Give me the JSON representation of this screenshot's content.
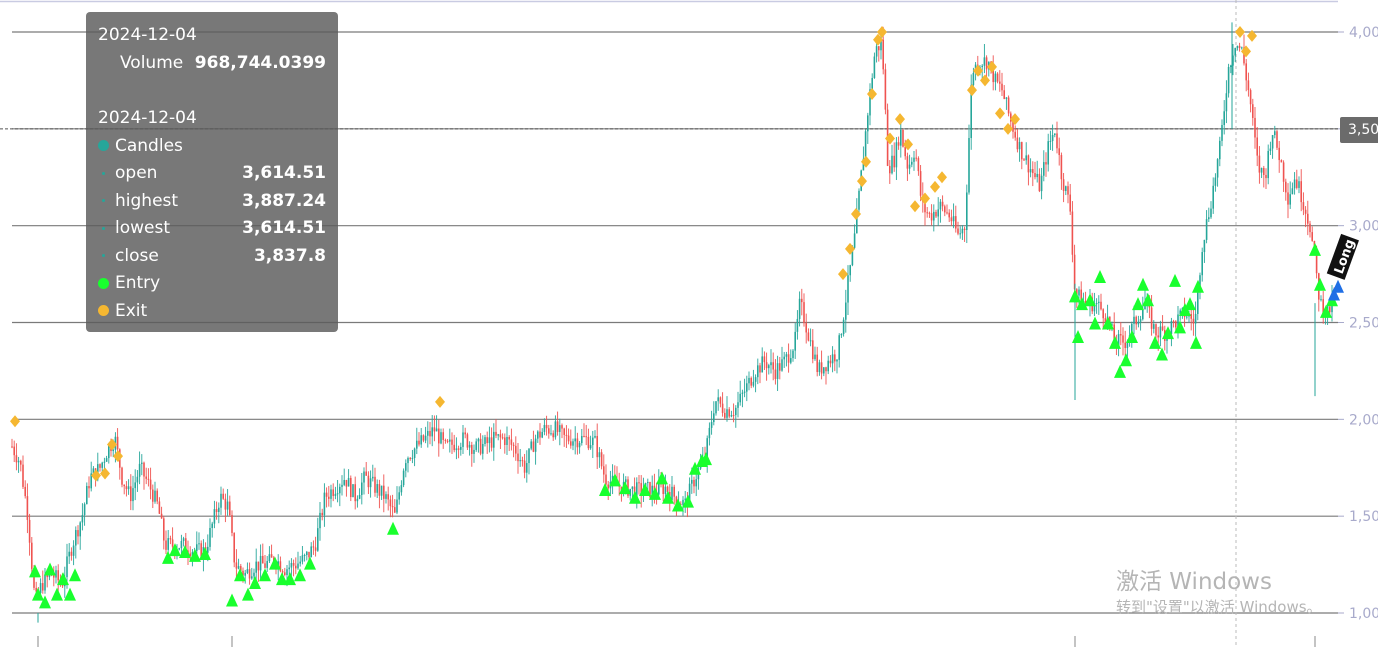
{
  "tooltip": {
    "date1": "2024-12-04",
    "volume_label": "Volume",
    "volume_value": "968,744.0399",
    "date2": "2024-12-04",
    "candles_label": "Candles",
    "open_label": "open",
    "open_value": "3,614.51",
    "high_label": "highest",
    "high_value": "3,887.24",
    "low_label": "lowest",
    "low_value": "3,614.51",
    "close_label": "close",
    "close_value": "3,837.8",
    "entry_label": "Entry",
    "exit_label": "Exit"
  },
  "watermark": {
    "line1": "激活 Windows",
    "line2": "转到\"设置\"以激活 Windows。"
  },
  "tag_text": "Long",
  "crosshair_price": "3,50",
  "colors": {
    "up": "#26a69a",
    "down": "#ef5350",
    "entry": "#19ff2e",
    "exit": "#f5b731",
    "grid": "#7a7a7a",
    "axis_text": "#a8aacb",
    "tooltip_bg": "#5a5a5a",
    "candles_dot": "#26a69a"
  },
  "chart_data": {
    "type": "candlestick",
    "ylim": [
      950,
      4150
    ],
    "y_ticks": [
      {
        "value": 1000,
        "label": "1,00"
      },
      {
        "value": 1500,
        "label": "1,50"
      },
      {
        "value": 2000,
        "label": "2,00"
      },
      {
        "value": 2500,
        "label": "2,50"
      },
      {
        "value": 3000,
        "label": "3,00"
      },
      {
        "value": 3500,
        "label": "3,50"
      },
      {
        "value": 4000,
        "label": "4,00"
      }
    ],
    "crosshair_value": 3500,
    "close_path": [
      [
        0,
        1850
      ],
      [
        10,
        1880
      ],
      [
        20,
        1780
      ],
      [
        28,
        1500
      ],
      [
        35,
        1050
      ],
      [
        42,
        1150
      ],
      [
        52,
        1200
      ],
      [
        62,
        1150
      ],
      [
        72,
        1350
      ],
      [
        82,
        1500
      ],
      [
        90,
        1700
      ],
      [
        100,
        1750
      ],
      [
        108,
        1850
      ],
      [
        115,
        1900
      ],
      [
        122,
        1700
      ],
      [
        130,
        1600
      ],
      [
        140,
        1750
      ],
      [
        150,
        1650
      ],
      [
        158,
        1550
      ],
      [
        165,
        1350
      ],
      [
        175,
        1350
      ],
      [
        185,
        1350
      ],
      [
        195,
        1320
      ],
      [
        205,
        1320
      ],
      [
        212,
        1450
      ],
      [
        220,
        1600
      ],
      [
        228,
        1550
      ],
      [
        235,
        1250
      ],
      [
        245,
        1200
      ],
      [
        255,
        1250
      ],
      [
        265,
        1250
      ],
      [
        275,
        1280
      ],
      [
        285,
        1230
      ],
      [
        295,
        1250
      ],
      [
        305,
        1280
      ],
      [
        315,
        1350
      ],
      [
        325,
        1600
      ],
      [
        335,
        1650
      ],
      [
        345,
        1700
      ],
      [
        355,
        1600
      ],
      [
        365,
        1700
      ],
      [
        375,
        1650
      ],
      [
        385,
        1600
      ],
      [
        395,
        1500
      ],
      [
        405,
        1800
      ],
      [
        415,
        1850
      ],
      [
        425,
        1900
      ],
      [
        435,
        1950
      ],
      [
        445,
        1850
      ],
      [
        455,
        1880
      ],
      [
        465,
        1900
      ],
      [
        475,
        1850
      ],
      [
        485,
        1870
      ],
      [
        495,
        1900
      ],
      [
        505,
        1900
      ],
      [
        515,
        1850
      ],
      [
        525,
        1750
      ],
      [
        535,
        1900
      ],
      [
        545,
        1950
      ],
      [
        555,
        1950
      ],
      [
        565,
        1900
      ],
      [
        575,
        1900
      ],
      [
        585,
        1900
      ],
      [
        595,
        1880
      ],
      [
        605,
        1700
      ],
      [
        615,
        1660
      ],
      [
        625,
        1650
      ],
      [
        635,
        1630
      ],
      [
        645,
        1640
      ],
      [
        655,
        1630
      ],
      [
        665,
        1650
      ],
      [
        675,
        1600
      ],
      [
        685,
        1560
      ],
      [
        695,
        1700
      ],
      [
        705,
        1800
      ],
      [
        715,
        2100
      ],
      [
        725,
        2050
      ],
      [
        735,
        2050
      ],
      [
        745,
        2150
      ],
      [
        755,
        2250
      ],
      [
        765,
        2300
      ],
      [
        775,
        2250
      ],
      [
        785,
        2300
      ],
      [
        795,
        2400
      ],
      [
        800,
        2600
      ],
      [
        808,
        2450
      ],
      [
        818,
        2250
      ],
      [
        828,
        2300
      ],
      [
        838,
        2350
      ],
      [
        848,
        2700
      ],
      [
        855,
        2950
      ],
      [
        862,
        3300
      ],
      [
        868,
        3600
      ],
      [
        875,
        3900
      ],
      [
        882,
        3950
      ],
      [
        888,
        3300
      ],
      [
        895,
        3350
      ],
      [
        900,
        3500
      ],
      [
        908,
        3300
      ],
      [
        915,
        3400
      ],
      [
        922,
        3100
      ],
      [
        930,
        3050
      ],
      [
        940,
        3100
      ],
      [
        950,
        3050
      ],
      [
        958,
        2950
      ],
      [
        965,
        3000
      ],
      [
        972,
        3800
      ],
      [
        980,
        3850
      ],
      [
        988,
        3850
      ],
      [
        995,
        3750
      ],
      [
        1002,
        3700
      ],
      [
        1010,
        3550
      ],
      [
        1020,
        3400
      ],
      [
        1030,
        3300
      ],
      [
        1040,
        3200
      ],
      [
        1048,
        3400
      ],
      [
        1055,
        3500
      ],
      [
        1062,
        3250
      ],
      [
        1070,
        3100
      ],
      [
        1075,
        2650
      ],
      [
        1085,
        2600
      ],
      [
        1095,
        2600
      ],
      [
        1105,
        2550
      ],
      [
        1115,
        2400
      ],
      [
        1125,
        2400
      ],
      [
        1135,
        2500
      ],
      [
        1145,
        2600
      ],
      [
        1155,
        2450
      ],
      [
        1165,
        2450
      ],
      [
        1175,
        2500
      ],
      [
        1185,
        2550
      ],
      [
        1195,
        2500
      ],
      [
        1202,
        2900
      ],
      [
        1210,
        3100
      ],
      [
        1220,
        3400
      ],
      [
        1228,
        3800
      ],
      [
        1235,
        3950
      ],
      [
        1242,
        3900
      ],
      [
        1250,
        3650
      ],
      [
        1258,
        3300
      ],
      [
        1265,
        3250
      ],
      [
        1272,
        3500
      ],
      [
        1280,
        3350
      ],
      [
        1288,
        3150
      ],
      [
        1295,
        3250
      ],
      [
        1302,
        3150
      ],
      [
        1310,
        3000
      ],
      [
        1315,
        2800
      ],
      [
        1320,
        2600
      ],
      [
        1328,
        2550
      ],
      [
        1336,
        2650
      ]
    ],
    "entries": [
      [
        35,
        1220
      ],
      [
        38,
        1100
      ],
      [
        45,
        1060
      ],
      [
        50,
        1230
      ],
      [
        57,
        1100
      ],
      [
        63,
        1180
      ],
      [
        70,
        1100
      ],
      [
        75,
        1200
      ],
      [
        168,
        1290
      ],
      [
        175,
        1330
      ],
      [
        185,
        1320
      ],
      [
        195,
        1300
      ],
      [
        205,
        1310
      ],
      [
        232,
        1070
      ],
      [
        240,
        1200
      ],
      [
        248,
        1100
      ],
      [
        255,
        1160
      ],
      [
        265,
        1200
      ],
      [
        275,
        1260
      ],
      [
        282,
        1180
      ],
      [
        290,
        1180
      ],
      [
        300,
        1200
      ],
      [
        310,
        1260
      ],
      [
        393,
        1440
      ],
      [
        605,
        1640
      ],
      [
        615,
        1690
      ],
      [
        625,
        1650
      ],
      [
        635,
        1600
      ],
      [
        645,
        1640
      ],
      [
        655,
        1620
      ],
      [
        662,
        1700
      ],
      [
        668,
        1600
      ],
      [
        678,
        1560
      ],
      [
        688,
        1580
      ],
      [
        695,
        1750
      ],
      [
        702,
        1790
      ],
      [
        706,
        1800
      ],
      [
        1075,
        2640
      ],
      [
        1078,
        2430
      ],
      [
        1082,
        2600
      ],
      [
        1090,
        2620
      ],
      [
        1095,
        2500
      ],
      [
        1100,
        2740
      ],
      [
        1108,
        2500
      ],
      [
        1115,
        2400
      ],
      [
        1120,
        2250
      ],
      [
        1126,
        2310
      ],
      [
        1132,
        2430
      ],
      [
        1138,
        2600
      ],
      [
        1143,
        2700
      ],
      [
        1148,
        2620
      ],
      [
        1155,
        2400
      ],
      [
        1162,
        2340
      ],
      [
        1168,
        2450
      ],
      [
        1175,
        2720
      ],
      [
        1180,
        2480
      ],
      [
        1185,
        2570
      ],
      [
        1190,
        2600
      ],
      [
        1196,
        2400
      ],
      [
        1198,
        2690
      ],
      [
        1315,
        2880
      ],
      [
        1320,
        2700
      ],
      [
        1326,
        2560
      ],
      [
        1332,
        2620
      ]
    ],
    "exits": [
      [
        15,
        1990
      ],
      [
        96,
        1710
      ],
      [
        105,
        1720
      ],
      [
        112,
        1870
      ],
      [
        118,
        1810
      ],
      [
        440,
        2090
      ],
      [
        843,
        2750
      ],
      [
        850,
        2880
      ],
      [
        856,
        3060
      ],
      [
        862,
        3230
      ],
      [
        866,
        3330
      ],
      [
        872,
        3680
      ],
      [
        878,
        3960
      ],
      [
        882,
        4000
      ],
      [
        890,
        3450
      ],
      [
        900,
        3550
      ],
      [
        908,
        3420
      ],
      [
        915,
        3100
      ],
      [
        925,
        3140
      ],
      [
        935,
        3200
      ],
      [
        942,
        3250
      ],
      [
        972,
        3700
      ],
      [
        978,
        3800
      ],
      [
        985,
        3750
      ],
      [
        992,
        3820
      ],
      [
        1000,
        3580
      ],
      [
        1008,
        3500
      ],
      [
        1015,
        3550
      ],
      [
        1240,
        4000
      ],
      [
        1246,
        3900
      ],
      [
        1252,
        3980
      ]
    ],
    "markers_blue": [
      [
        1334,
        2650
      ],
      [
        1338,
        2690
      ]
    ]
  }
}
